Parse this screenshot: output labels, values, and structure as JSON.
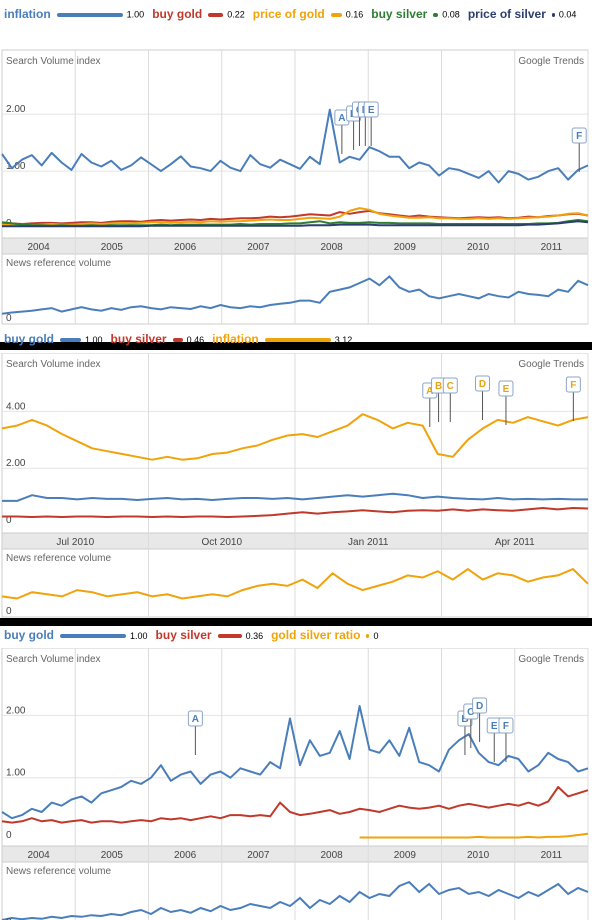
{
  "chart_data": [
    {
      "type": "line",
      "legend": [
        {
          "name": "inflation",
          "value": "1.00",
          "color": "#4a7ebb"
        },
        {
          "name": "buy gold",
          "value": "0.22",
          "color": "#c0392b"
        },
        {
          "name": "price of gold",
          "value": "0.16",
          "color": "#f0a30a"
        },
        {
          "name": "buy silver",
          "value": "0.08",
          "color": "#2e7d32"
        },
        {
          "name": "price of silver",
          "value": "0.04",
          "color": "#2c3e70"
        }
      ],
      "search_label": "Search Volume index",
      "brand": "Google Trends",
      "news_label": "News reference volume",
      "y_ticks": [
        "2.00",
        "1.00",
        "0"
      ],
      "x_ticks": [
        "2004",
        "2005",
        "2006",
        "2007",
        "2008",
        "2009",
        "2010",
        "2011"
      ],
      "annotations": [
        "A",
        "B",
        "C",
        "D",
        "E",
        "F"
      ],
      "series": [
        {
          "name": "inflation",
          "color": "#4a7ebb",
          "values": [
            1.3,
            1.05,
            1.2,
            1.28,
            1.1,
            1.32,
            1.15,
            1.02,
            1.3,
            1.15,
            1.08,
            1.18,
            1.02,
            1.1,
            1.24,
            1.12,
            1.0,
            1.12,
            1.26,
            1.08,
            1.05,
            1.0,
            1.18,
            1.06,
            1.0,
            1.28,
            1.12,
            1.06,
            1.2,
            1.12,
            1.04,
            1.25,
            1.12,
            2.08,
            1.15,
            1.25,
            1.2,
            1.42,
            1.35,
            1.25,
            1.25,
            1.05,
            1.15,
            1.1,
            0.92,
            1.05,
            1.02,
            0.95,
            0.88,
            1.0,
            0.8,
            1.0,
            0.95,
            0.85,
            0.9,
            1.0,
            1.05,
            0.85,
            1.02,
            1.1
          ]
        },
        {
          "name": "buy gold",
          "color": "#c0392b",
          "values": [
            0.08,
            0.08,
            0.07,
            0.08,
            0.09,
            0.09,
            0.08,
            0.09,
            0.1,
            0.1,
            0.09,
            0.11,
            0.12,
            0.12,
            0.11,
            0.13,
            0.14,
            0.13,
            0.14,
            0.15,
            0.14,
            0.16,
            0.15,
            0.16,
            0.17,
            0.17,
            0.18,
            0.2,
            0.19,
            0.2,
            0.22,
            0.24,
            0.23,
            0.22,
            0.28,
            0.25,
            0.28,
            0.3,
            0.26,
            0.24,
            0.22,
            0.2,
            0.22,
            0.2,
            0.19,
            0.18,
            0.17,
            0.18,
            0.19,
            0.18,
            0.19,
            0.17,
            0.18,
            0.2,
            0.19,
            0.21,
            0.22,
            0.24,
            0.25,
            0.22
          ]
        },
        {
          "name": "price of gold",
          "color": "#f0a30a",
          "values": [
            0.06,
            0.05,
            0.06,
            0.05,
            0.06,
            0.07,
            0.06,
            0.06,
            0.07,
            0.08,
            0.07,
            0.08,
            0.09,
            0.08,
            0.09,
            0.1,
            0.1,
            0.09,
            0.1,
            0.11,
            0.1,
            0.12,
            0.11,
            0.12,
            0.12,
            0.13,
            0.14,
            0.15,
            0.14,
            0.14,
            0.16,
            0.18,
            0.17,
            0.16,
            0.2,
            0.3,
            0.35,
            0.32,
            0.25,
            0.22,
            0.2,
            0.18,
            0.18,
            0.19,
            0.17,
            0.17,
            0.16,
            0.16,
            0.17,
            0.16,
            0.17,
            0.16,
            0.17,
            0.18,
            0.19,
            0.2,
            0.22,
            0.25,
            0.26,
            0.22
          ]
        },
        {
          "name": "buy silver",
          "color": "#2e7d32",
          "values": [
            0.1,
            0.08,
            0.06,
            0.05,
            0.05,
            0.04,
            0.05,
            0.04,
            0.04,
            0.05,
            0.04,
            0.05,
            0.05,
            0.05,
            0.05,
            0.05,
            0.06,
            0.05,
            0.06,
            0.06,
            0.06,
            0.06,
            0.06,
            0.06,
            0.07,
            0.06,
            0.07,
            0.07,
            0.07,
            0.08,
            0.08,
            0.1,
            0.12,
            0.08,
            0.1,
            0.09,
            0.09,
            0.1,
            0.09,
            0.09,
            0.08,
            0.08,
            0.08,
            0.08,
            0.07,
            0.07,
            0.07,
            0.07,
            0.07,
            0.07,
            0.07,
            0.07,
            0.07,
            0.07,
            0.08,
            0.08,
            0.09,
            0.12,
            0.14,
            0.12
          ]
        },
        {
          "name": "price of silver",
          "color": "#2c3e70",
          "values": [
            0.03,
            0.03,
            0.03,
            0.03,
            0.03,
            0.03,
            0.03,
            0.03,
            0.03,
            0.03,
            0.03,
            0.03,
            0.03,
            0.03,
            0.03,
            0.04,
            0.04,
            0.04,
            0.04,
            0.04,
            0.04,
            0.04,
            0.04,
            0.04,
            0.04,
            0.04,
            0.04,
            0.04,
            0.04,
            0.04,
            0.04,
            0.05,
            0.05,
            0.05,
            0.06,
            0.06,
            0.06,
            0.06,
            0.05,
            0.05,
            0.05,
            0.05,
            0.05,
            0.05,
            0.05,
            0.05,
            0.05,
            0.05,
            0.05,
            0.05,
            0.05,
            0.05,
            0.05,
            0.06,
            0.06,
            0.07,
            0.08,
            0.1,
            0.12,
            0.1
          ]
        }
      ],
      "ylim": [
        0,
        2.6
      ],
      "news_values": [
        0.05,
        0.08,
        0.1,
        0.12,
        0.15,
        0.18,
        0.1,
        0.15,
        0.2,
        0.15,
        0.12,
        0.18,
        0.14,
        0.2,
        0.22,
        0.18,
        0.15,
        0.2,
        0.18,
        0.16,
        0.22,
        0.18,
        0.25,
        0.2,
        0.18,
        0.22,
        0.2,
        0.25,
        0.28,
        0.3,
        0.35,
        0.35,
        0.3,
        0.55,
        0.6,
        0.65,
        0.75,
        0.85,
        0.7,
        0.9,
        0.65,
        0.55,
        0.6,
        0.45,
        0.4,
        0.45,
        0.5,
        0.45,
        0.4,
        0.5,
        0.45,
        0.42,
        0.55,
        0.5,
        0.48,
        0.45,
        0.6,
        0.55,
        0.8,
        0.7
      ]
    },
    {
      "type": "line",
      "legend": [
        {
          "name": "buy gold",
          "value": "1.00",
          "color": "#4a7ebb"
        },
        {
          "name": "buy silver",
          "value": "0.46",
          "color": "#c0392b"
        },
        {
          "name": "inflation",
          "value": "3.12",
          "color": "#f0a30a"
        }
      ],
      "search_label": "Search Volume index",
      "brand": "Google Trends",
      "news_label": "News reference volume",
      "y_ticks": [
        "4.00",
        "2.00",
        "0"
      ],
      "x_ticks": [
        "Jul 2010",
        "Oct 2010",
        "Jan 2011",
        "Apr 2011"
      ],
      "annotations": [
        "A",
        "B",
        "C",
        "D",
        "E",
        "F"
      ],
      "series": [
        {
          "name": "buy gold",
          "color": "#4a7ebb",
          "values": [
            0.85,
            0.85,
            1.05,
            0.95,
            0.95,
            0.9,
            0.95,
            0.92,
            0.92,
            0.88,
            0.92,
            0.95,
            0.9,
            0.92,
            0.88,
            0.92,
            0.95,
            0.95,
            0.92,
            0.95,
            0.9,
            0.95,
            1.0,
            1.05,
            1.0,
            1.05,
            1.1,
            1.05,
            0.95,
            1.0,
            0.95,
            0.92,
            0.9,
            0.95,
            0.9,
            0.92,
            0.9,
            0.92,
            0.9,
            0.9
          ]
        },
        {
          "name": "buy silver",
          "color": "#c0392b",
          "values": [
            0.3,
            0.3,
            0.28,
            0.3,
            0.28,
            0.3,
            0.3,
            0.28,
            0.3,
            0.3,
            0.28,
            0.3,
            0.28,
            0.3,
            0.3,
            0.28,
            0.3,
            0.32,
            0.35,
            0.4,
            0.45,
            0.4,
            0.45,
            0.48,
            0.52,
            0.48,
            0.45,
            0.5,
            0.52,
            0.5,
            0.55,
            0.5,
            0.55,
            0.52,
            0.5,
            0.55,
            0.6,
            0.55,
            0.6,
            0.58
          ]
        },
        {
          "name": "inflation",
          "color": "#f0a30a",
          "values": [
            3.4,
            3.5,
            3.7,
            3.5,
            3.2,
            2.95,
            2.7,
            2.6,
            2.5,
            2.4,
            2.3,
            2.4,
            2.3,
            2.35,
            2.5,
            2.55,
            2.7,
            2.8,
            3.0,
            3.15,
            3.2,
            3.1,
            3.3,
            3.5,
            3.9,
            3.7,
            3.4,
            3.6,
            3.5,
            2.5,
            2.4,
            3.0,
            3.4,
            3.7,
            3.6,
            3.8,
            3.65,
            3.5,
            3.7,
            3.8
          ]
        }
      ],
      "ylim": [
        0,
        5
      ],
      "news_values": [
        0.3,
        0.25,
        0.4,
        0.35,
        0.3,
        0.45,
        0.4,
        0.3,
        0.35,
        0.4,
        0.3,
        0.35,
        0.25,
        0.3,
        0.35,
        0.3,
        0.45,
        0.55,
        0.6,
        0.55,
        0.7,
        0.5,
        0.85,
        0.6,
        0.45,
        0.55,
        0.65,
        0.8,
        0.75,
        0.9,
        0.7,
        0.95,
        0.7,
        0.85,
        0.8,
        0.65,
        0.75,
        0.8,
        0.95,
        0.6
      ]
    },
    {
      "type": "line",
      "legend": [
        {
          "name": "buy gold",
          "value": "1.00",
          "color": "#4a7ebb"
        },
        {
          "name": "buy silver",
          "value": "0.36",
          "color": "#c0392b"
        },
        {
          "name": "gold silver ratio",
          "value": "0",
          "color": "#f0a30a"
        }
      ],
      "search_label": "Search Volume index",
      "brand": "Google Trends",
      "news_label": "News reference volume",
      "y_ticks": [
        "2.00",
        "1.00",
        "0"
      ],
      "x_ticks": [
        "2004",
        "2005",
        "2006",
        "2007",
        "2008",
        "2009",
        "2010",
        "2011"
      ],
      "annotations": [
        "A",
        "B",
        "C",
        "D",
        "E",
        "F"
      ],
      "series": [
        {
          "name": "buy gold",
          "color": "#4a7ebb",
          "values": [
            0.45,
            0.35,
            0.4,
            0.5,
            0.45,
            0.6,
            0.55,
            0.65,
            0.7,
            0.6,
            0.75,
            0.8,
            0.85,
            0.95,
            0.9,
            1.0,
            1.2,
            0.95,
            1.05,
            1.1,
            0.9,
            1.05,
            1.1,
            1.0,
            1.15,
            1.1,
            1.05,
            1.25,
            1.15,
            1.95,
            1.2,
            1.6,
            1.35,
            1.4,
            1.75,
            1.3,
            2.15,
            1.45,
            1.4,
            1.6,
            1.35,
            1.8,
            1.25,
            1.2,
            1.1,
            1.45,
            1.6,
            1.7,
            1.4,
            1.25,
            1.2,
            1.35,
            1.3,
            1.1,
            1.2,
            1.4,
            1.3,
            1.25,
            1.1,
            1.15
          ]
        },
        {
          "name": "buy silver",
          "color": "#c0392b",
          "values": [
            0.3,
            0.28,
            0.3,
            0.35,
            0.3,
            0.32,
            0.28,
            0.3,
            0.32,
            0.28,
            0.3,
            0.3,
            0.28,
            0.3,
            0.32,
            0.3,
            0.35,
            0.33,
            0.35,
            0.32,
            0.35,
            0.38,
            0.35,
            0.4,
            0.4,
            0.38,
            0.4,
            0.38,
            0.6,
            0.45,
            0.4,
            0.42,
            0.45,
            0.48,
            0.42,
            0.45,
            0.5,
            0.48,
            0.45,
            0.5,
            0.55,
            0.52,
            0.5,
            0.52,
            0.55,
            0.5,
            0.55,
            0.58,
            0.55,
            0.52,
            0.55,
            0.58,
            0.55,
            0.6,
            0.55,
            0.62,
            0.85,
            0.7,
            0.75,
            0.8
          ]
        },
        {
          "name": "gold silver ratio",
          "color": "#f0a30a",
          "values": [
            null,
            null,
            null,
            null,
            null,
            null,
            null,
            null,
            null,
            null,
            null,
            null,
            null,
            null,
            null,
            null,
            null,
            null,
            null,
            null,
            null,
            null,
            null,
            null,
            null,
            null,
            null,
            null,
            null,
            null,
            null,
            null,
            null,
            null,
            null,
            null,
            0.04,
            0.04,
            0.04,
            0.04,
            0.04,
            0.04,
            0.04,
            0.04,
            0.04,
            0.04,
            0.04,
            0.04,
            0.05,
            0.04,
            0.04,
            0.04,
            0.04,
            0.05,
            0.04,
            0.05,
            0.05,
            0.06,
            0.08,
            0.1
          ]
        }
      ],
      "ylim": [
        0,
        2.6
      ],
      "news_values": [
        0.0,
        0.05,
        0.02,
        0.05,
        0.03,
        0.08,
        0.05,
        0.1,
        0.08,
        0.12,
        0.1,
        0.15,
        0.12,
        0.2,
        0.25,
        0.15,
        0.3,
        0.2,
        0.25,
        0.18,
        0.3,
        0.22,
        0.35,
        0.25,
        0.3,
        0.4,
        0.35,
        0.3,
        0.45,
        0.35,
        0.55,
        0.3,
        0.5,
        0.4,
        0.6,
        0.45,
        0.7,
        0.55,
        0.65,
        0.6,
        0.85,
        0.95,
        0.7,
        0.9,
        0.65,
        0.75,
        0.8,
        0.65,
        0.7,
        0.6,
        0.75,
        0.65,
        0.55,
        0.7,
        0.6,
        0.75,
        0.9,
        0.65,
        0.8,
        0.7
      ]
    }
  ]
}
